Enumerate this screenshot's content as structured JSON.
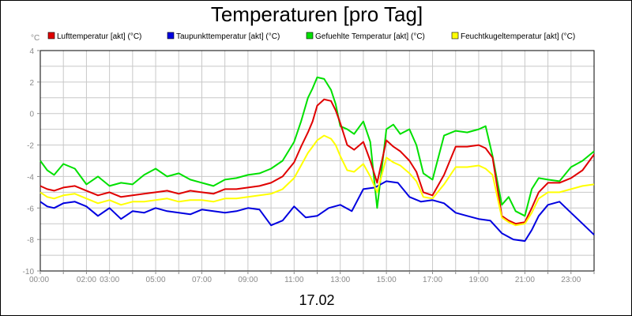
{
  "chart_data": {
    "type": "line",
    "title": "Temperaturen [pro Tag]",
    "y_unit_label": "°C",
    "date_label": "17.02",
    "ylim": [
      -10,
      4
    ],
    "y_ticks": [
      4,
      2,
      0,
      -2,
      -4,
      -6,
      -8,
      -10
    ],
    "xlim": [
      0,
      24
    ],
    "x_tick_labels": [
      "00:00",
      "02:00",
      "03:00",
      "05:00",
      "07:00",
      "09:00",
      "11:00",
      "13:00",
      "15:00",
      "17:00",
      "19:00",
      "21:00",
      "23:00"
    ],
    "x_tick_hours": [
      0,
      2,
      3,
      5,
      7,
      9,
      11,
      13,
      15,
      17,
      19,
      21,
      23
    ],
    "grid": true,
    "legend_position": "top",
    "series": [
      {
        "name": "Lufttemperatur [akt] (°C)",
        "color": "#e00000",
        "x": [
          0,
          0.3,
          0.6,
          1,
          1.5,
          2,
          2.5,
          3,
          3.5,
          4,
          4.5,
          5,
          5.5,
          6,
          6.5,
          7,
          7.5,
          8,
          8.5,
          9,
          9.5,
          10,
          10.5,
          11,
          11.3,
          11.6,
          11.8,
          12,
          12.3,
          12.6,
          12.8,
          13,
          13.3,
          13.6,
          14,
          14.3,
          14.6,
          15,
          15.3,
          15.6,
          16,
          16.3,
          16.6,
          17,
          17.5,
          18,
          18.5,
          19,
          19.3,
          19.6,
          20,
          20.3,
          20.6,
          21,
          21.3,
          21.6,
          22,
          22.5,
          23,
          23.5,
          24
        ],
        "values": [
          -4.6,
          -4.8,
          -4.9,
          -4.7,
          -4.6,
          -4.9,
          -5.2,
          -5.0,
          -5.3,
          -5.2,
          -5.1,
          -5.0,
          -4.9,
          -5.1,
          -4.9,
          -5.0,
          -5.1,
          -4.8,
          -4.8,
          -4.7,
          -4.6,
          -4.4,
          -4.0,
          -3.1,
          -2.1,
          -1.2,
          -0.5,
          0.5,
          0.9,
          0.8,
          0.2,
          -0.6,
          -2.0,
          -2.3,
          -1.8,
          -3.0,
          -4.4,
          -1.7,
          -2.1,
          -2.4,
          -3.0,
          -3.7,
          -5.0,
          -5.2,
          -3.9,
          -2.1,
          -2.1,
          -2.0,
          -2.2,
          -2.8,
          -6.5,
          -6.8,
          -7.0,
          -6.9,
          -6.0,
          -5.0,
          -4.4,
          -4.4,
          -4.1,
          -3.6,
          -2.6
        ]
      },
      {
        "name": "Taupunkttemperatur [akt] (°C)",
        "color": "#0000e0",
        "x": [
          0,
          0.3,
          0.6,
          1,
          1.5,
          2,
          2.5,
          3,
          3.5,
          4,
          4.5,
          5,
          5.5,
          6,
          6.5,
          7,
          7.5,
          8,
          8.5,
          9,
          9.5,
          10,
          10.5,
          11,
          11.5,
          12,
          12.5,
          13,
          13.5,
          14,
          14.5,
          15,
          15.5,
          16,
          16.5,
          17,
          17.5,
          18,
          18.5,
          19,
          19.5,
          20,
          20.5,
          21,
          21.3,
          21.6,
          22,
          22.5,
          23,
          23.5,
          24
        ],
        "values": [
          -5.6,
          -5.9,
          -6.0,
          -5.7,
          -5.6,
          -5.9,
          -6.5,
          -6.0,
          -6.7,
          -6.2,
          -6.3,
          -6.0,
          -6.2,
          -6.3,
          -6.4,
          -6.1,
          -6.2,
          -6.3,
          -6.2,
          -6.0,
          -6.1,
          -7.1,
          -6.8,
          -5.9,
          -6.6,
          -6.5,
          -6.0,
          -5.8,
          -6.2,
          -4.8,
          -4.7,
          -4.3,
          -4.4,
          -5.3,
          -5.6,
          -5.5,
          -5.7,
          -6.3,
          -6.5,
          -6.7,
          -6.8,
          -7.6,
          -8.0,
          -8.1,
          -7.4,
          -6.5,
          -5.8,
          -5.6,
          -6.3,
          -7.0,
          -7.7
        ]
      },
      {
        "name": "Gefuehlte Temperatur [akt] (°C)",
        "color": "#00e000",
        "x": [
          0,
          0.3,
          0.6,
          1,
          1.5,
          2,
          2.5,
          3,
          3.5,
          4,
          4.5,
          5,
          5.5,
          6,
          6.5,
          7,
          7.5,
          8,
          8.5,
          9,
          9.5,
          10,
          10.5,
          11,
          11.3,
          11.6,
          11.8,
          12,
          12.3,
          12.6,
          12.8,
          13,
          13.3,
          13.6,
          14,
          14.3,
          14.6,
          15,
          15.3,
          15.6,
          16,
          16.3,
          16.6,
          17,
          17.5,
          18,
          18.5,
          19,
          19.3,
          19.6,
          20,
          20.3,
          20.6,
          21,
          21.3,
          21.6,
          22,
          22.5,
          23,
          23.5,
          24
        ],
        "values": [
          -3.0,
          -3.6,
          -3.9,
          -3.2,
          -3.5,
          -4.5,
          -4.0,
          -4.6,
          -4.4,
          -4.5,
          -3.9,
          -3.5,
          -4.0,
          -3.8,
          -4.2,
          -4.4,
          -4.6,
          -4.2,
          -4.1,
          -3.9,
          -3.8,
          -3.5,
          -3.0,
          -1.8,
          -0.5,
          1.0,
          1.6,
          2.3,
          2.2,
          1.5,
          0.6,
          -0.8,
          -1.0,
          -1.3,
          -0.5,
          -1.8,
          -6.0,
          -1.0,
          -0.7,
          -1.3,
          -1.0,
          -2.0,
          -3.8,
          -4.2,
          -1.4,
          -1.1,
          -1.2,
          -1.0,
          -0.8,
          -2.7,
          -5.8,
          -5.3,
          -6.2,
          -6.5,
          -4.8,
          -4.1,
          -4.2,
          -4.3,
          -3.4,
          -3.0,
          -2.4
        ]
      },
      {
        "name": "Feuchtkugeltemperatur [akt] (°C)",
        "color": "#ffff00",
        "x": [
          0,
          0.3,
          0.6,
          1,
          1.5,
          2,
          2.5,
          3,
          3.5,
          4,
          4.5,
          5,
          5.5,
          6,
          6.5,
          7,
          7.5,
          8,
          8.5,
          9,
          9.5,
          10,
          10.5,
          11,
          11.3,
          11.6,
          11.8,
          12,
          12.3,
          12.6,
          12.8,
          13,
          13.3,
          13.6,
          14,
          14.3,
          14.6,
          15,
          15.3,
          15.6,
          16,
          16.3,
          16.6,
          17,
          17.5,
          18,
          18.5,
          19,
          19.3,
          19.6,
          20,
          20.3,
          20.6,
          21,
          21.3,
          21.6,
          22,
          22.5,
          23,
          23.5,
          24
        ],
        "values": [
          -5.0,
          -5.3,
          -5.4,
          -5.2,
          -5.1,
          -5.4,
          -5.7,
          -5.5,
          -5.8,
          -5.6,
          -5.6,
          -5.5,
          -5.4,
          -5.6,
          -5.5,
          -5.5,
          -5.6,
          -5.4,
          -5.4,
          -5.3,
          -5.2,
          -5.1,
          -4.8,
          -4.1,
          -3.3,
          -2.5,
          -2.1,
          -1.7,
          -1.4,
          -1.6,
          -2.0,
          -2.7,
          -3.6,
          -3.7,
          -3.2,
          -4.0,
          -5.0,
          -2.8,
          -3.1,
          -3.3,
          -3.8,
          -4.3,
          -5.3,
          -5.4,
          -4.5,
          -3.4,
          -3.4,
          -3.3,
          -3.5,
          -3.9,
          -6.6,
          -6.9,
          -7.1,
          -7.0,
          -6.3,
          -5.4,
          -5.0,
          -5.0,
          -4.8,
          -4.6,
          -4.5
        ]
      }
    ]
  }
}
